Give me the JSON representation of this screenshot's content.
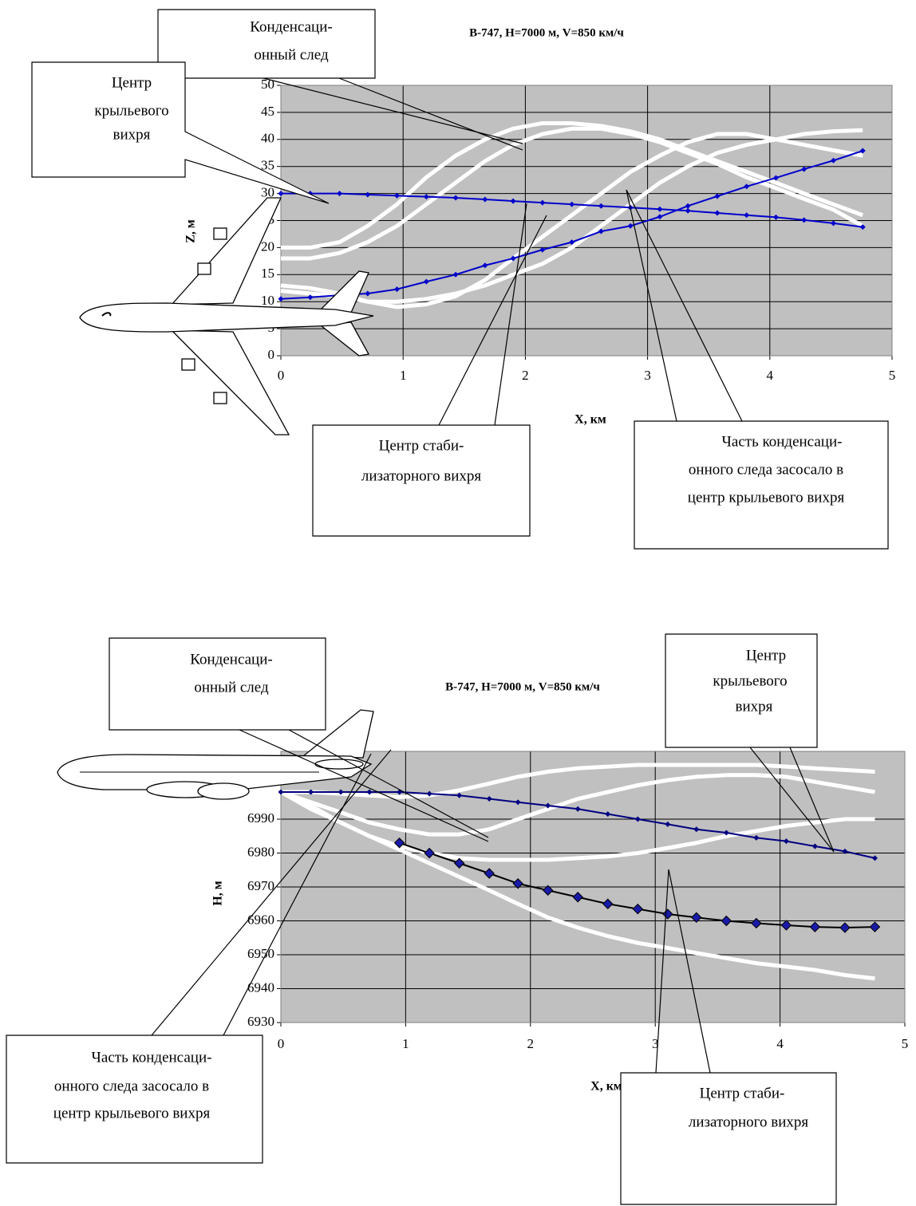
{
  "chart_data": [
    {
      "type": "line",
      "title": "B-747,  H=7000 м, V=850 км/ч",
      "x_label": "X, км",
      "y_label": "Z, м",
      "x": [
        0,
        0.24,
        0.48,
        0.71,
        0.95,
        1.19,
        1.43,
        1.67,
        1.9,
        2.14,
        2.38,
        2.62,
        2.86,
        3.1,
        3.33,
        3.57,
        3.81,
        4.05,
        4.28,
        4.52,
        4.76
      ],
      "xlim": [
        0,
        5
      ],
      "ylim": [
        0,
        50
      ],
      "xticks": [
        0,
        1,
        2,
        3,
        4,
        5
      ],
      "yticks": [
        0,
        5,
        10,
        15,
        20,
        25,
        30,
        35,
        40,
        45,
        50
      ],
      "grid": true,
      "plot_background": "#c0c0c0",
      "series": [
        {
          "color": "#ffffff",
          "values": [
            20,
            20,
            21,
            24,
            28,
            33,
            37,
            40,
            42,
            43,
            43,
            42.5,
            41.5,
            40,
            38,
            36,
            34,
            32,
            30,
            28,
            26
          ]
        },
        {
          "color": "#ffffff",
          "values": [
            18,
            18,
            19,
            21,
            24,
            28,
            32,
            36,
            39,
            41,
            42,
            42,
            41,
            39.5,
            37.5,
            35.5,
            33,
            31,
            29,
            27,
            24
          ]
        },
        {
          "color": "#ffffff",
          "values": [
            13,
            12.5,
            11.5,
            10,
            9,
            9.5,
            11,
            14,
            18,
            22,
            26,
            30,
            34,
            37,
            39.5,
            41,
            41,
            40,
            39,
            38,
            37
          ]
        },
        {
          "color": "#ffffff",
          "values": [
            12,
            11.5,
            11,
            10,
            10,
            10.5,
            11.5,
            13,
            15,
            17,
            20,
            24,
            28,
            32,
            35,
            37.5,
            39,
            40,
            41,
            41.5,
            41.7
          ]
        },
        {
          "color": "#0000cc",
          "marker": "diamond",
          "values": [
            30,
            30,
            30,
            29.8,
            29.6,
            29.4,
            29.2,
            28.9,
            28.6,
            28.3,
            28,
            27.7,
            27.4,
            27.1,
            26.8,
            26.4,
            26,
            25.6,
            25.1,
            24.5,
            23.8
          ]
        },
        {
          "color": "#0000cc",
          "marker": "diamond",
          "values": [
            10.5,
            10.8,
            11.2,
            11.5,
            12.3,
            13.7,
            15,
            16.7,
            18,
            19.6,
            21,
            23,
            24,
            25.7,
            27.7,
            29.5,
            31.3,
            32.9,
            34.5,
            36.1,
            37.9
          ]
        }
      ],
      "annotations": [
        {
          "lines": [
            "Конденсаци-",
            "онный след"
          ]
        },
        {
          "lines": [
            "Центр",
            "крыльевого",
            "вихря"
          ]
        },
        {
          "lines": [
            "Центр стаби-",
            "лизаторного вихря"
          ]
        },
        {
          "lines": [
            "Часть конденсаци-",
            "онного следа засосало в",
            "центр крыльевого вихря"
          ]
        }
      ]
    },
    {
      "type": "line",
      "title": "B-747, H=7000 м, V=850 км/ч",
      "x_label": "X, км",
      "y_label": "H, м",
      "x": [
        0,
        0.24,
        0.48,
        0.71,
        0.95,
        1.19,
        1.43,
        1.67,
        1.9,
        2.14,
        2.38,
        2.62,
        2.86,
        3.1,
        3.33,
        3.57,
        3.81,
        4.05,
        4.28,
        4.52,
        4.76
      ],
      "xlim": [
        0,
        5
      ],
      "ylim": [
        6930,
        7010
      ],
      "xticks": [
        0,
        1,
        2,
        3,
        4,
        5
      ],
      "yticks": [
        6930,
        6940,
        6950,
        6960,
        6970,
        6980,
        6990
      ],
      "grid": true,
      "plot_background": "#c0c0c0",
      "series": [
        {
          "color": "#ffffff",
          "values": [
            6998,
            6998,
            6997.5,
            6997,
            6996.5,
            6997,
            6998.5,
            7000.5,
            7002.5,
            7004,
            7005,
            7005.5,
            7006,
            7006,
            7006,
            7006,
            7006,
            7005.5,
            7005,
            7004.5,
            7004
          ]
        },
        {
          "color": "#ffffff",
          "values": [
            6998,
            6995,
            6992,
            6989,
            6987,
            6985.5,
            6985.5,
            6987,
            6990,
            6993,
            6996,
            6998,
            7000,
            7001.5,
            7002.5,
            7003,
            7003,
            7002.5,
            7001,
            6999.5,
            6998
          ]
        },
        {
          "color": "#ffffff",
          "values": [
            6998,
            6993,
            6989,
            6985,
            6982,
            6980,
            6978.5,
            6978,
            6978,
            6978,
            6978.5,
            6979,
            6980,
            6981.5,
            6983,
            6985,
            6986.5,
            6988,
            6989,
            6990,
            6990
          ]
        },
        {
          "color": "#ffffff",
          "values": [
            6998,
            6994,
            6989,
            6985,
            6981,
            6977,
            6973,
            6969,
            6965,
            6961,
            6958,
            6955.5,
            6953.5,
            6952,
            6950.5,
            6949,
            6947.5,
            6946.5,
            6945.5,
            6944,
            6943
          ]
        },
        {
          "color": "#000080",
          "marker": "diamond",
          "values": [
            6998,
            6998,
            6998,
            6998,
            6998,
            6997.5,
            6997,
            6996,
            6995,
            6994,
            6993,
            6991.5,
            6990,
            6988.5,
            6987,
            6986,
            6984.5,
            6983.5,
            6982,
            6980.5,
            6978.5
          ]
        },
        {
          "color": "#000000",
          "marker": "big-diamond",
          "values": [
            null,
            null,
            null,
            null,
            6983,
            6980,
            6977,
            6974,
            6971,
            6969,
            6967,
            6965,
            6963.5,
            6962,
            6961,
            6960,
            6959.3,
            6958.7,
            6958.2,
            6958,
            6958.2
          ]
        }
      ],
      "annotations": [
        {
          "lines": [
            "Конденсаци-",
            "онный след"
          ]
        },
        {
          "lines": [
            "Центр",
            "крыльевого",
            "вихря"
          ]
        },
        {
          "lines": [
            "Часть конденсаци-",
            "онного следа засосало в",
            "центр крыльевого вихря"
          ]
        },
        {
          "lines": [
            "Центр стаби-",
            "лизаторного вихря"
          ]
        }
      ]
    }
  ]
}
